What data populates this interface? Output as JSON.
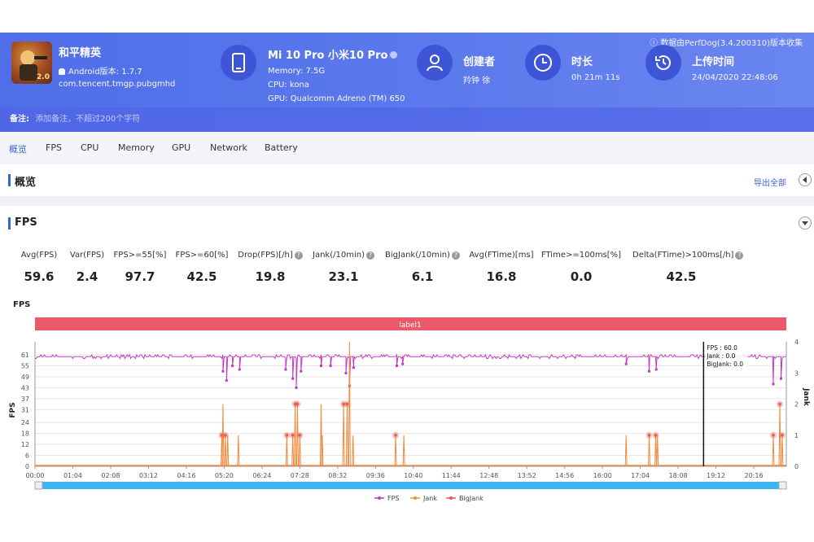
{
  "header": {
    "source_note": "数据由PerfDog(3.4.200310)版本收集",
    "app": {
      "name": "和平精英",
      "android_version": "Android版本: 1.7.7",
      "package": "com.tencent.tmgp.pubgmhd",
      "icon_badge": "2.0"
    },
    "device": {
      "title": "Mi 10 Pro 小米10 Pro",
      "memory": "Memory: 7.5G",
      "cpu": "CPU: kona",
      "gpu": "GPU: Qualcomm Adreno (TM) 650"
    },
    "creator": {
      "title": "创建者",
      "value": "羚钟 徐"
    },
    "duration": {
      "title": "时长",
      "value": "0h 21m 11s"
    },
    "upload": {
      "title": "上传时间",
      "value": "24/04/2020 22:48:06"
    },
    "remark": {
      "label": "备注:",
      "placeholder": "添加备注，不超过200个字符"
    }
  },
  "tabs": [
    "概览",
    "FPS",
    "CPU",
    "Memory",
    "GPU",
    "Network",
    "Battery"
  ],
  "overview": {
    "title": "概览",
    "export_label": "导出全部"
  },
  "fps_section": {
    "title": "FPS",
    "stats": [
      {
        "label": "Avg(FPS)",
        "value": "59.6",
        "help": false
      },
      {
        "label": "Var(FPS)",
        "value": "2.4",
        "help": false
      },
      {
        "label": "FPS>=55[%]",
        "value": "97.7",
        "help": false
      },
      {
        "label": "FPS>=60[%]",
        "value": "42.5",
        "help": false
      },
      {
        "label": "Drop(FPS)[/h]",
        "value": "19.8",
        "help": true
      },
      {
        "label": "Jank(/10min)",
        "value": "23.1",
        "help": true
      },
      {
        "label": "BigJank(/10min)",
        "value": "6.1",
        "help": true
      },
      {
        "label": "Avg(FTime)[ms]",
        "value": "16.8",
        "help": false
      },
      {
        "label": "FTime>=100ms[%]",
        "value": "0.0",
        "help": false
      },
      {
        "label": "Delta(FTime)>100ms[/h]",
        "value": "42.5",
        "help": true
      }
    ]
  },
  "chart_data": {
    "type": "line",
    "title": "FPS",
    "band_label": "label1",
    "ylabel": "FPS",
    "ylabel_right": "Jank",
    "y_ticks": [
      0,
      6,
      12,
      18,
      24,
      31,
      37,
      43,
      49,
      55,
      61
    ],
    "y_right_ticks": [
      0,
      1,
      2,
      3,
      4
    ],
    "ylim": [
      0,
      61
    ],
    "ylim_right": [
      0,
      4
    ],
    "x_ticks": [
      "00:00",
      "01:04",
      "02:08",
      "03:12",
      "04:16",
      "05:20",
      "06:24",
      "07:28",
      "08:32",
      "09:36",
      "10:40",
      "11:44",
      "12:48",
      "13:52",
      "14:56",
      "16:00",
      "17:04",
      "18:08",
      "19:12",
      "20:16"
    ],
    "x_range_seconds": [
      0,
      1271
    ],
    "legend": [
      "FPS",
      "Jank",
      "BigJank"
    ],
    "colors": {
      "fps": "#c43bc3",
      "jank": "#f08a3c",
      "bigjank": "#e8584e",
      "band": "#ec5a6a",
      "scroll": "#3cb4ef"
    },
    "fps_baseline": 60,
    "fps_dips": [
      {
        "t": 318,
        "fps": 52
      },
      {
        "t": 324,
        "fps": 47
      },
      {
        "t": 334,
        "fps": 55
      },
      {
        "t": 346,
        "fps": 53
      },
      {
        "t": 424,
        "fps": 53
      },
      {
        "t": 436,
        "fps": 48
      },
      {
        "t": 442,
        "fps": 43
      },
      {
        "t": 450,
        "fps": 52
      },
      {
        "t": 484,
        "fps": 55
      },
      {
        "t": 500,
        "fps": 55
      },
      {
        "t": 526,
        "fps": 51
      },
      {
        "t": 532,
        "fps": 44
      },
      {
        "t": 539,
        "fps": 54
      },
      {
        "t": 612,
        "fps": 55
      },
      {
        "t": 622,
        "fps": 56
      },
      {
        "t": 1000,
        "fps": 56
      },
      {
        "t": 1039,
        "fps": 52
      },
      {
        "t": 1051,
        "fps": 53
      },
      {
        "t": 1249,
        "fps": 45
      },
      {
        "t": 1262,
        "fps": 48
      }
    ],
    "jank_events": [
      {
        "t": 316,
        "jank": 1,
        "big": true
      },
      {
        "t": 318,
        "jank": 2,
        "big": false
      },
      {
        "t": 322,
        "jank": 1,
        "big": true
      },
      {
        "t": 326,
        "jank": 1,
        "big": false
      },
      {
        "t": 344,
        "jank": 1,
        "big": false
      },
      {
        "t": 426,
        "jank": 1,
        "big": true
      },
      {
        "t": 436,
        "jank": 1,
        "big": true
      },
      {
        "t": 440,
        "jank": 2,
        "big": true
      },
      {
        "t": 444,
        "jank": 2,
        "big": true
      },
      {
        "t": 448,
        "jank": 1,
        "big": true
      },
      {
        "t": 484,
        "jank": 2,
        "big": false
      },
      {
        "t": 486,
        "jank": 1,
        "big": false
      },
      {
        "t": 522,
        "jank": 2,
        "big": true
      },
      {
        "t": 528,
        "jank": 2,
        "big": true
      },
      {
        "t": 532,
        "jank": 4,
        "big": false
      },
      {
        "t": 538,
        "jank": 1,
        "big": false
      },
      {
        "t": 610,
        "jank": 1,
        "big": true
      },
      {
        "t": 624,
        "jank": 1,
        "big": false
      },
      {
        "t": 1000,
        "jank": 1,
        "big": false
      },
      {
        "t": 1039,
        "jank": 1,
        "big": true
      },
      {
        "t": 1050,
        "jank": 1,
        "big": true
      },
      {
        "t": 1053,
        "jank": 1,
        "big": false
      },
      {
        "t": 1249,
        "jank": 1,
        "big": true
      },
      {
        "t": 1260,
        "jank": 2,
        "big": true
      },
      {
        "t": 1264,
        "jank": 1,
        "big": true
      }
    ],
    "cursor": {
      "t": 1131,
      "tooltip": [
        "FPS      : 60.0",
        "Jank      : 0.0",
        "BigJank: 0.0"
      ]
    }
  }
}
